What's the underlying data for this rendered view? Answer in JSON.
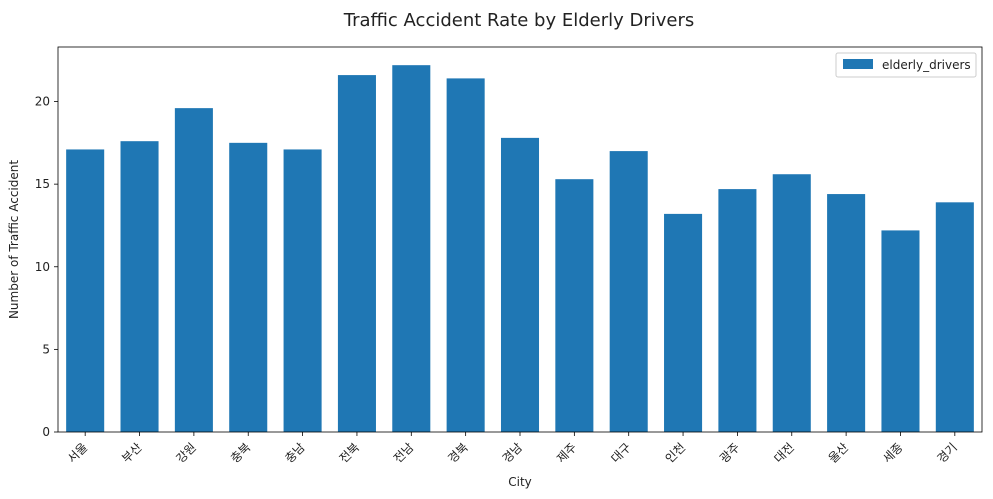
{
  "chart_data": {
    "type": "bar",
    "title": "Traffic Accident Rate by Elderly Drivers",
    "xlabel": "City",
    "ylabel": "Number of Traffic Accident",
    "categories": [
      "서울",
      "부산",
      "강원",
      "충북",
      "충남",
      "전북",
      "전남",
      "경북",
      "경남",
      "제주",
      "대구",
      "인천",
      "광주",
      "대전",
      "울산",
      "세종",
      "경기"
    ],
    "series": [
      {
        "name": "elderly_drivers",
        "values": [
          17.1,
          17.6,
          19.6,
          17.5,
          17.1,
          21.6,
          22.2,
          21.4,
          17.8,
          15.3,
          17.0,
          13.2,
          14.7,
          15.6,
          14.4,
          12.2,
          13.9
        ]
      }
    ],
    "ylim": [
      0,
      23.3
    ],
    "yticks": [
      0,
      5,
      10,
      15,
      20
    ],
    "color": "#1f77b4",
    "legend_position": "top-right",
    "grid": false
  }
}
